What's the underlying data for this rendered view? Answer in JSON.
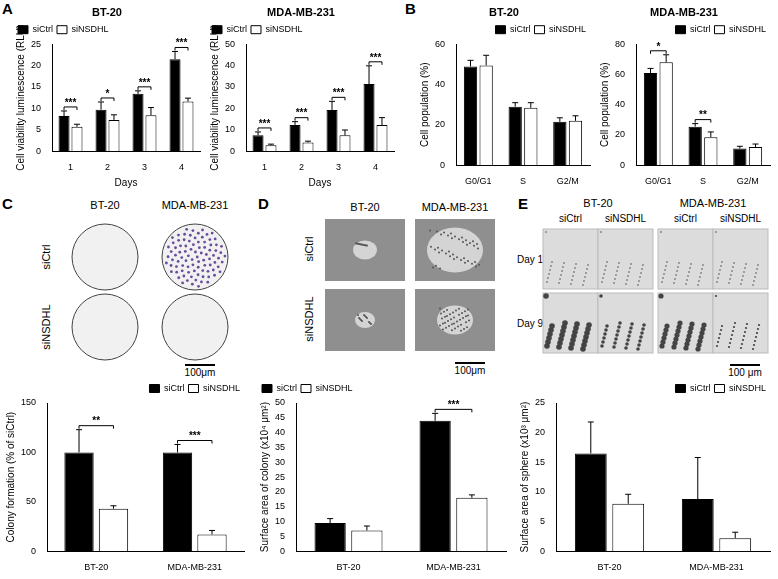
{
  "chart_data": [
    {
      "type": "bar",
      "title": "BT-20",
      "x_label": "Days",
      "y_label": "Cell viability luminescence (RLU)",
      "categories": [
        "1",
        "2",
        "3",
        "4"
      ],
      "series": [
        {
          "name": "siCtrl",
          "color": "#000000",
          "values": [
            8.2,
            9.7,
            13.4,
            21.5
          ],
          "errors": [
            1.2,
            1.8,
            0.7,
            1.8
          ]
        },
        {
          "name": "siNSDHL",
          "color": "#ffffff",
          "values": [
            5.7,
            7.3,
            8.4,
            11.6
          ],
          "errors": [
            0.6,
            1.2,
            1.8,
            0.8
          ]
        }
      ],
      "ylim": [
        0,
        25
      ],
      "yticks": [
        0,
        5,
        10,
        15,
        20,
        25
      ],
      "grid": false,
      "legend": "upper left",
      "annotations": [
        {
          "category": "1",
          "text": "***"
        },
        {
          "category": "2",
          "text": "*"
        },
        {
          "category": "3",
          "text": "***"
        },
        {
          "category": "4",
          "text": "***"
        }
      ]
    },
    {
      "type": "bar",
      "title": "MDA-MB-231",
      "x_label": "Days",
      "y_label": "Cell viability luminescence (RLU)",
      "categories": [
        "1",
        "2",
        "3",
        "4"
      ],
      "series": [
        {
          "name": "siCtrl",
          "color": "#000000",
          "values": [
            7.5,
            12.3,
            19.3,
            31.4
          ],
          "errors": [
            1.5,
            1.5,
            4,
            8.5
          ]
        },
        {
          "name": "siNSDHL",
          "color": "#ffffff",
          "values": [
            2.8,
            4.1,
            7.4,
            12.2
          ],
          "errors": [
            0.5,
            0.6,
            2.5,
            3.5
          ]
        }
      ],
      "ylim": [
        0,
        50
      ],
      "yticks": [
        0,
        10,
        20,
        30,
        40,
        50
      ],
      "grid": false,
      "legend": "upper left",
      "annotations": [
        {
          "category": "1",
          "text": "***"
        },
        {
          "category": "2",
          "text": "***"
        },
        {
          "category": "3",
          "text": "***"
        },
        {
          "category": "4",
          "text": "***"
        }
      ]
    },
    {
      "type": "bar",
      "title": "BT-20",
      "y_label": "Cell population (%)",
      "categories": [
        "G0/G1",
        "S",
        "G2/M"
      ],
      "series": [
        {
          "name": "siCtrl",
          "color": "#000000",
          "values": [
            49,
            29,
            21.5
          ],
          "errors": [
            3,
            2,
            2
          ]
        },
        {
          "name": "siNSDHL",
          "color": "#ffffff",
          "values": [
            49.5,
            28.5,
            22
          ],
          "errors": [
            5,
            2.5,
            2.5
          ]
        }
      ],
      "ylim": [
        0,
        60
      ],
      "yticks": [
        0,
        20,
        40,
        60
      ],
      "grid": false,
      "legend": "upper right",
      "annotations": []
    },
    {
      "type": "bar",
      "title": "MDA-MB-231",
      "y_label": "Cell population (%)",
      "categories": [
        "G0/G1",
        "S",
        "G2/M"
      ],
      "series": [
        {
          "name": "siCtrl",
          "color": "#000000",
          "values": [
            61,
            25.5,
            11
          ],
          "errors": [
            3,
            2,
            1.5
          ]
        },
        {
          "name": "siNSDHL",
          "color": "#ffffff",
          "values": [
            68,
            18.5,
            12
          ],
          "errors": [
            5,
            3.5,
            2
          ]
        }
      ],
      "ylim": [
        0,
        80
      ],
      "yticks": [
        0,
        20,
        40,
        60,
        80
      ],
      "grid": false,
      "legend": "upper right",
      "annotations": [
        {
          "category": "G0/G1",
          "text": "*"
        },
        {
          "category": "S",
          "text": "**"
        }
      ]
    },
    {
      "type": "bar",
      "y_label": "Colony formation (% of siCtrl)",
      "categories": [
        "BT-20",
        "MDA-MB-231"
      ],
      "series": [
        {
          "name": "siCtrl",
          "color": "#000000",
          "values": [
            100,
            100
          ],
          "errors": [
            23,
            8
          ]
        },
        {
          "name": "siNSDHL",
          "color": "#ffffff",
          "values": [
            43,
            17
          ],
          "errors": [
            3,
            4
          ]
        }
      ],
      "ylim": [
        0,
        150
      ],
      "yticks": [
        0,
        50,
        100,
        150
      ],
      "grid": false,
      "legend": "upper right",
      "annotations": [
        {
          "category": "BT-20",
          "text": "**"
        },
        {
          "category": "MDA-MB-231",
          "text": "***"
        }
      ]
    },
    {
      "type": "bar",
      "y_label": "Surface area of colony (x10⁴ μm²)",
      "categories": [
        "BT-20",
        "MDA-MB-231"
      ],
      "series": [
        {
          "name": "siCtrl",
          "color": "#000000",
          "values": [
            9.5,
            44
          ],
          "errors": [
            1.5,
            2.5
          ]
        },
        {
          "name": "siNSDHL",
          "color": "#ffffff",
          "values": [
            7,
            18
          ],
          "errors": [
            1.5,
            1
          ]
        }
      ],
      "ylim": [
        0,
        50
      ],
      "yticks": [
        0,
        5,
        10,
        15,
        20,
        25,
        30,
        35,
        40,
        45,
        50
      ],
      "grid": false,
      "legend": "upper left",
      "annotations": [
        {
          "category": "MDA-MB-231",
          "text": "***"
        }
      ]
    },
    {
      "type": "bar",
      "y_label": "Surface area of sphere (x10³ μm²)",
      "categories": [
        "BT-20",
        "MDA-MB-231"
      ],
      "series": [
        {
          "name": "siCtrl",
          "color": "#000000",
          "values": [
            16.5,
            8.8
          ],
          "errors": [
            5.3,
            7
          ]
        },
        {
          "name": "siNSDHL",
          "color": "#ffffff",
          "values": [
            8,
            2.2
          ],
          "errors": [
            1.6,
            1
          ]
        }
      ],
      "ylim": [
        0,
        25
      ],
      "yticks": [
        0,
        5,
        10,
        15,
        20,
        25
      ],
      "grid": false,
      "legend": "upper right",
      "annotations": []
    }
  ],
  "panels": [
    {
      "letter": "A"
    },
    {
      "letter": "B"
    },
    {
      "letter": "C",
      "image": {
        "columns": [
          "BT-20",
          "MDA-MB-231"
        ],
        "rows": [
          "siCtrl",
          "siNSDHL"
        ],
        "scale_bar": "100μm"
      }
    },
    {
      "letter": "D",
      "image": {
        "columns": [
          "BT-20",
          "MDA-MB-231"
        ],
        "rows": [
          "siCtrl",
          "siNSDHL"
        ],
        "scale_bar": "100μm"
      }
    },
    {
      "letter": "E",
      "image": {
        "groups": [
          "BT-20",
          "MDA-MB-231"
        ],
        "columns": [
          "siCtrl",
          "siNSDHL",
          "siCtrl",
          "siNSDHL"
        ],
        "rows": [
          "Day 1",
          "Day 9"
        ],
        "scale_bar": "100 μm"
      }
    }
  ]
}
